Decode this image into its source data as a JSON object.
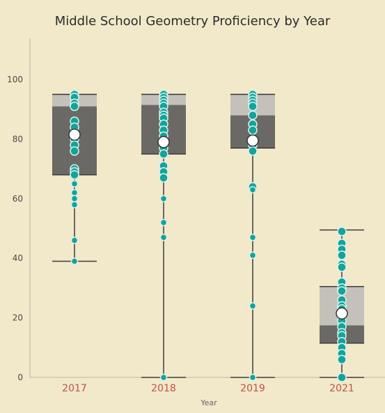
{
  "chart_data": {
    "type": "box",
    "title": "Middle School Geometry Proficiency by Year",
    "xlabel": "Year",
    "ylabel": "",
    "ylim": [
      0,
      112
    ],
    "yticks": [
      0,
      20,
      40,
      60,
      80,
      100
    ],
    "grid": false,
    "colors": {
      "background": "#f1e9c9",
      "box_dark": "#6b6966",
      "box_light": "#c4c1bb",
      "whisker": "#3c3c3c",
      "point": "#13a39a",
      "point_edge": "#d8f1ef",
      "mean": "#ffffff",
      "tick_label": "#c0504d"
    },
    "categories": [
      "2017",
      "2018",
      "2019",
      "2021"
    ],
    "boxes": [
      {
        "year": "2017",
        "min": 39,
        "q1": 68,
        "median": 91,
        "q3": 95,
        "max": 95,
        "mean": 81.5,
        "points": [
          95,
          94,
          92,
          91,
          86,
          84,
          82,
          80,
          78,
          76,
          70,
          69,
          68,
          65,
          62,
          60,
          58,
          46,
          39
        ]
      },
      {
        "year": "2018",
        "min": 0,
        "q1": 75,
        "median": 91.5,
        "q3": 95,
        "max": 95,
        "mean": 79,
        "points": [
          95,
          94,
          93,
          92,
          91,
          89,
          88,
          87,
          85,
          83,
          81,
          79,
          77,
          75,
          71,
          69,
          67,
          60,
          52,
          47,
          0
        ]
      },
      {
        "year": "2019",
        "min": 0,
        "q1": 77,
        "median": 88,
        "q3": 95,
        "max": 95,
        "mean": 79.5,
        "points": [
          95,
          94,
          93,
          92,
          91,
          88,
          85,
          83,
          80,
          78,
          76,
          64,
          63,
          47,
          41,
          24,
          0
        ]
      },
      {
        "year": "2021",
        "min": 0,
        "q1": 11.5,
        "median": 17.5,
        "q3": 30.5,
        "max": 49.5,
        "mean": 21.5,
        "points": [
          49,
          45,
          43,
          41,
          38,
          37,
          32,
          30,
          29,
          26,
          24,
          23,
          21,
          19,
          17,
          15,
          14,
          12,
          10,
          8,
          6,
          0
        ]
      }
    ]
  }
}
